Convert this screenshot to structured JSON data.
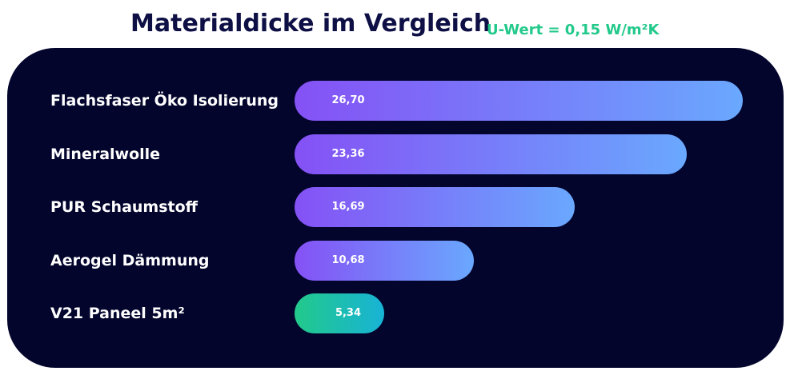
{
  "header": {
    "title": "Materialdicke im Vergleich",
    "subtitle": "U-Wert = 0,15 W/m²K"
  },
  "colors": {
    "panel_bg": "#03052d",
    "title": "#0d0f45",
    "subtitle": "#22c98a",
    "bar_gradient_start": "#8551f5",
    "bar_gradient_end": "#6aa8fe",
    "highlight_gradient_start": "#22c98a",
    "highlight_gradient_end": "#18b3d6"
  },
  "chart_data": {
    "type": "bar",
    "orientation": "horizontal",
    "title": "Materialdicke im Vergleich",
    "subtitle": "U-Wert = 0,15 W/m²K",
    "categories": [
      "Flachsfaser Öko Isolierung",
      "Mineralwolle",
      "PUR Schaumstoff",
      "Aerogel Dämmung",
      "V21 Paneel 5m²"
    ],
    "values": [
      26.7,
      23.36,
      16.69,
      10.68,
      5.34
    ],
    "value_labels": [
      "26,70",
      "23,36",
      "16,69",
      "10,68",
      "5,34"
    ],
    "highlight": [
      false,
      false,
      false,
      false,
      true
    ],
    "xlim": [
      0,
      26.7
    ],
    "xlabel": "",
    "ylabel": "",
    "grid": false
  }
}
